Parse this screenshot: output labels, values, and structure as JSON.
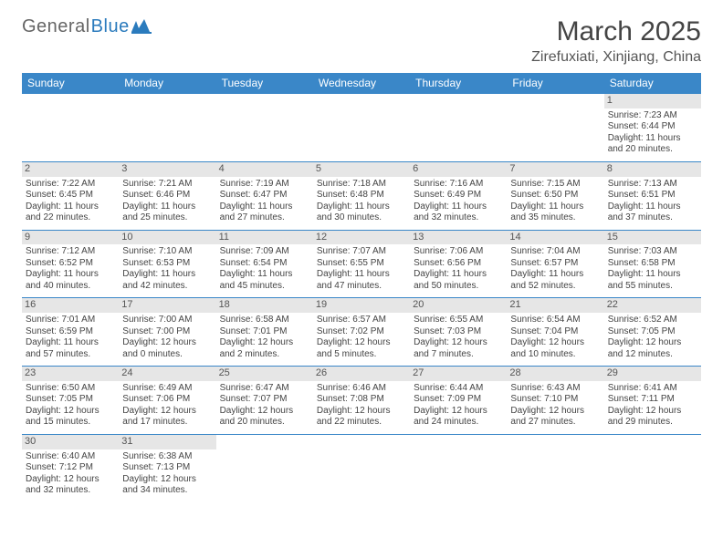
{
  "logo": {
    "text_a": "General",
    "text_b": "Blue"
  },
  "header": {
    "month_title": "March 2025",
    "location": "Zirefuxiati, Xinjiang, China"
  },
  "colors": {
    "header_bg": "#3a87c8",
    "header_text": "#ffffff",
    "row_border": "#3a87c8",
    "daynum_bg": "#e6e6e6",
    "logo_blue": "#2b7bbd",
    "body_text": "#444444"
  },
  "typography": {
    "month_title_size_pt": 22,
    "location_size_pt": 12,
    "dayheader_size_pt": 9,
    "cell_size_pt": 7.5
  },
  "layout": {
    "columns": 7,
    "rows": 6,
    "start_weekday": "Sunday",
    "first_day_column": 6
  },
  "day_headers": [
    "Sunday",
    "Monday",
    "Tuesday",
    "Wednesday",
    "Thursday",
    "Friday",
    "Saturday"
  ],
  "days": [
    {
      "n": 1,
      "sunrise": "7:23 AM",
      "sunset": "6:44 PM",
      "daylight_h": 11,
      "daylight_m": 20
    },
    {
      "n": 2,
      "sunrise": "7:22 AM",
      "sunset": "6:45 PM",
      "daylight_h": 11,
      "daylight_m": 22
    },
    {
      "n": 3,
      "sunrise": "7:21 AM",
      "sunset": "6:46 PM",
      "daylight_h": 11,
      "daylight_m": 25
    },
    {
      "n": 4,
      "sunrise": "7:19 AM",
      "sunset": "6:47 PM",
      "daylight_h": 11,
      "daylight_m": 27
    },
    {
      "n": 5,
      "sunrise": "7:18 AM",
      "sunset": "6:48 PM",
      "daylight_h": 11,
      "daylight_m": 30
    },
    {
      "n": 6,
      "sunrise": "7:16 AM",
      "sunset": "6:49 PM",
      "daylight_h": 11,
      "daylight_m": 32
    },
    {
      "n": 7,
      "sunrise": "7:15 AM",
      "sunset": "6:50 PM",
      "daylight_h": 11,
      "daylight_m": 35
    },
    {
      "n": 8,
      "sunrise": "7:13 AM",
      "sunset": "6:51 PM",
      "daylight_h": 11,
      "daylight_m": 37
    },
    {
      "n": 9,
      "sunrise": "7:12 AM",
      "sunset": "6:52 PM",
      "daylight_h": 11,
      "daylight_m": 40
    },
    {
      "n": 10,
      "sunrise": "7:10 AM",
      "sunset": "6:53 PM",
      "daylight_h": 11,
      "daylight_m": 42
    },
    {
      "n": 11,
      "sunrise": "7:09 AM",
      "sunset": "6:54 PM",
      "daylight_h": 11,
      "daylight_m": 45
    },
    {
      "n": 12,
      "sunrise": "7:07 AM",
      "sunset": "6:55 PM",
      "daylight_h": 11,
      "daylight_m": 47
    },
    {
      "n": 13,
      "sunrise": "7:06 AM",
      "sunset": "6:56 PM",
      "daylight_h": 11,
      "daylight_m": 50
    },
    {
      "n": 14,
      "sunrise": "7:04 AM",
      "sunset": "6:57 PM",
      "daylight_h": 11,
      "daylight_m": 52
    },
    {
      "n": 15,
      "sunrise": "7:03 AM",
      "sunset": "6:58 PM",
      "daylight_h": 11,
      "daylight_m": 55
    },
    {
      "n": 16,
      "sunrise": "7:01 AM",
      "sunset": "6:59 PM",
      "daylight_h": 11,
      "daylight_m": 57
    },
    {
      "n": 17,
      "sunrise": "7:00 AM",
      "sunset": "7:00 PM",
      "daylight_h": 12,
      "daylight_m": 0
    },
    {
      "n": 18,
      "sunrise": "6:58 AM",
      "sunset": "7:01 PM",
      "daylight_h": 12,
      "daylight_m": 2
    },
    {
      "n": 19,
      "sunrise": "6:57 AM",
      "sunset": "7:02 PM",
      "daylight_h": 12,
      "daylight_m": 5
    },
    {
      "n": 20,
      "sunrise": "6:55 AM",
      "sunset": "7:03 PM",
      "daylight_h": 12,
      "daylight_m": 7
    },
    {
      "n": 21,
      "sunrise": "6:54 AM",
      "sunset": "7:04 PM",
      "daylight_h": 12,
      "daylight_m": 10
    },
    {
      "n": 22,
      "sunrise": "6:52 AM",
      "sunset": "7:05 PM",
      "daylight_h": 12,
      "daylight_m": 12
    },
    {
      "n": 23,
      "sunrise": "6:50 AM",
      "sunset": "7:05 PM",
      "daylight_h": 12,
      "daylight_m": 15
    },
    {
      "n": 24,
      "sunrise": "6:49 AM",
      "sunset": "7:06 PM",
      "daylight_h": 12,
      "daylight_m": 17
    },
    {
      "n": 25,
      "sunrise": "6:47 AM",
      "sunset": "7:07 PM",
      "daylight_h": 12,
      "daylight_m": 20
    },
    {
      "n": 26,
      "sunrise": "6:46 AM",
      "sunset": "7:08 PM",
      "daylight_h": 12,
      "daylight_m": 22
    },
    {
      "n": 27,
      "sunrise": "6:44 AM",
      "sunset": "7:09 PM",
      "daylight_h": 12,
      "daylight_m": 24
    },
    {
      "n": 28,
      "sunrise": "6:43 AM",
      "sunset": "7:10 PM",
      "daylight_h": 12,
      "daylight_m": 27
    },
    {
      "n": 29,
      "sunrise": "6:41 AM",
      "sunset": "7:11 PM",
      "daylight_h": 12,
      "daylight_m": 29
    },
    {
      "n": 30,
      "sunrise": "6:40 AM",
      "sunset": "7:12 PM",
      "daylight_h": 12,
      "daylight_m": 32
    },
    {
      "n": 31,
      "sunrise": "6:38 AM",
      "sunset": "7:13 PM",
      "daylight_h": 12,
      "daylight_m": 34
    }
  ],
  "labels": {
    "sunrise_prefix": "Sunrise: ",
    "sunset_prefix": "Sunset: ",
    "daylight_prefix": "Daylight: ",
    "hours_word": " hours",
    "and_word": "and ",
    "minutes_word": " minutes."
  }
}
